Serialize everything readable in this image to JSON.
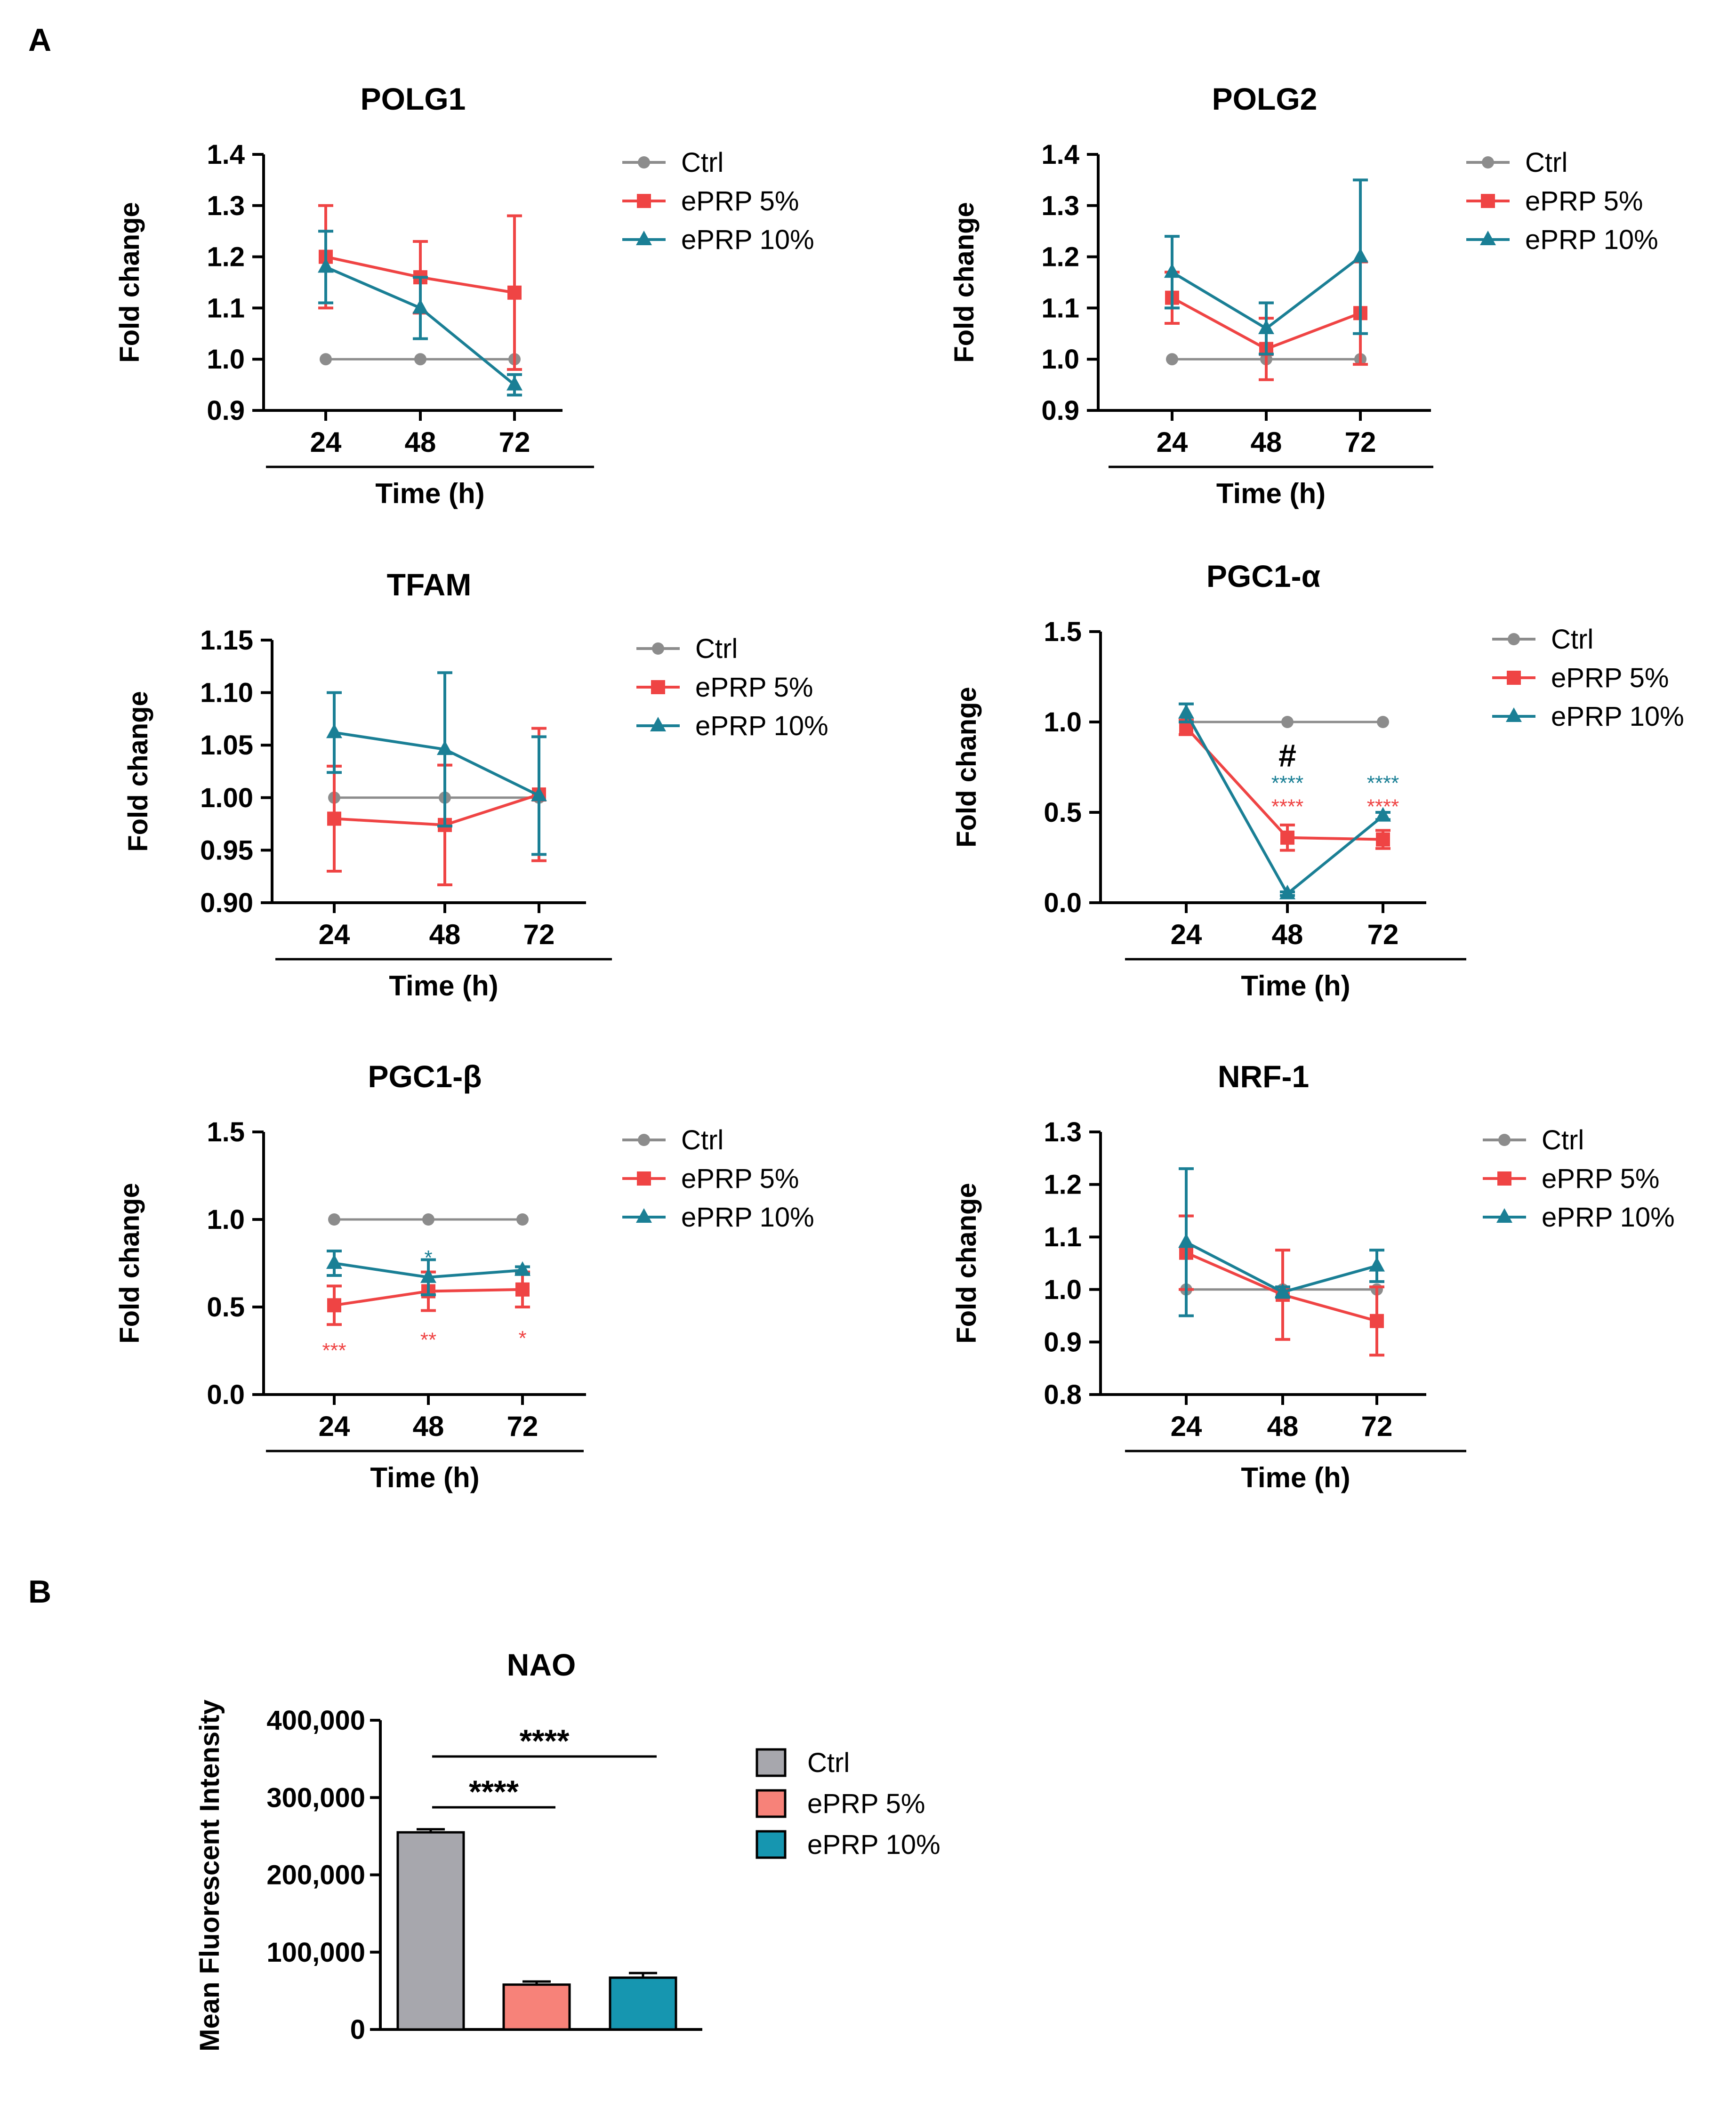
{
  "panels": {
    "a": "A",
    "b": "B"
  },
  "colors": {
    "ctrl": "#8c8c8c",
    "eprp5": "#ef4444",
    "eprp10": "#1a7f95",
    "bar_ctrl": "#a7a7ad",
    "bar_eprp5": "#f78279",
    "bar_eprp10": "#1696b0"
  },
  "chart_data": [
    {
      "id": "polg1",
      "type": "line",
      "title": "POLG1",
      "xlabel": "Time (h)",
      "ylabel": "Fold change",
      "categories": [
        "24",
        "48",
        "72"
      ],
      "ylim": [
        0.9,
        1.4
      ],
      "yticks": [
        "0.9",
        "1.0",
        "1.1",
        "1.2",
        "1.3",
        "1.4"
      ],
      "series": [
        {
          "name": "Ctrl",
          "values": [
            1.0,
            1.0,
            1.0
          ],
          "err": [
            0,
            0,
            0
          ]
        },
        {
          "name": "ePRP 5%",
          "values": [
            1.2,
            1.16,
            1.13
          ],
          "err": [
            0.1,
            0.07,
            0.15
          ]
        },
        {
          "name": "ePRP 10%",
          "values": [
            1.18,
            1.1,
            0.95
          ],
          "err": [
            0.07,
            0.06,
            0.02
          ]
        }
      ],
      "annotations": []
    },
    {
      "id": "polg2",
      "type": "line",
      "title": "POLG2",
      "xlabel": "Time (h)",
      "ylabel": "Fold change",
      "categories": [
        "24",
        "48",
        "72"
      ],
      "ylim": [
        0.9,
        1.4
      ],
      "yticks": [
        "0.9",
        "1.0",
        "1.1",
        "1.2",
        "1.3",
        "1.4"
      ],
      "series": [
        {
          "name": "Ctrl",
          "values": [
            1.0,
            1.0,
            1.0
          ],
          "err": [
            0,
            0,
            0
          ]
        },
        {
          "name": "ePRP 5%",
          "values": [
            1.12,
            1.02,
            1.09
          ],
          "err": [
            0.05,
            0.06,
            0.1
          ]
        },
        {
          "name": "ePRP 10%",
          "values": [
            1.17,
            1.06,
            1.2
          ],
          "err": [
            0.07,
            0.05,
            0.15
          ]
        }
      ],
      "annotations": []
    },
    {
      "id": "tfam",
      "type": "line",
      "title": "TFAM",
      "xlabel": "Time (h)",
      "ylabel": "Fold change",
      "categories": [
        "24",
        "48",
        "72"
      ],
      "ylim": [
        0.9,
        1.15
      ],
      "yticks": [
        "0.90",
        "0.95",
        "1.00",
        "1.05",
        "1.10",
        "1.15"
      ],
      "series": [
        {
          "name": "Ctrl",
          "values": [
            1.0,
            1.0,
            1.0
          ],
          "err": [
            0,
            0,
            0
          ]
        },
        {
          "name": "ePRP 5%",
          "values": [
            0.98,
            0.974,
            1.003
          ],
          "err": [
            0.05,
            0.057,
            0.063
          ]
        },
        {
          "name": "ePRP 10%",
          "values": [
            1.062,
            1.046,
            1.002
          ],
          "err": [
            0.038,
            0.073,
            0.056
          ]
        }
      ],
      "annotations": []
    },
    {
      "id": "pgc1a",
      "type": "line",
      "title": "PGC1-α",
      "xlabel": "Time (h)",
      "ylabel": "Fold change",
      "categories": [
        "24",
        "48",
        "72"
      ],
      "ylim": [
        0,
        1.5
      ],
      "yticks": [
        "0.0",
        "0.5",
        "1.0",
        "1.5"
      ],
      "series": [
        {
          "name": "Ctrl",
          "values": [
            1.0,
            1.0,
            1.0
          ],
          "err": [
            0,
            0,
            0
          ]
        },
        {
          "name": "ePRP 5%",
          "values": [
            0.97,
            0.36,
            0.35
          ],
          "err": [
            0.04,
            0.07,
            0.05
          ]
        },
        {
          "name": "ePRP 10%",
          "values": [
            1.05,
            0.05,
            0.48
          ],
          "err": [
            0.05,
            0.01,
            0.02
          ]
        }
      ],
      "annotations": [
        {
          "text": "#",
          "cat": 1,
          "y": 0.79,
          "series": "none"
        },
        {
          "text": "****",
          "cat": 1,
          "y": 0.66,
          "series": "ePRP 10%"
        },
        {
          "text": "****",
          "cat": 1,
          "y": 0.53,
          "series": "ePRP 5%"
        },
        {
          "text": "****",
          "cat": 2,
          "y": 0.66,
          "series": "ePRP 10%"
        },
        {
          "text": "****",
          "cat": 2,
          "y": 0.53,
          "series": "ePRP 5%"
        }
      ]
    },
    {
      "id": "pgc1b",
      "type": "line",
      "title": "PGC1-β",
      "xlabel": "Time (h)",
      "ylabel": "Fold change",
      "categories": [
        "24",
        "48",
        "72"
      ],
      "ylim": [
        0,
        1.5
      ],
      "yticks": [
        "0.0",
        "0.5",
        "1.0",
        "1.5"
      ],
      "series": [
        {
          "name": "Ctrl",
          "values": [
            1.0,
            1.0,
            1.0
          ],
          "err": [
            0,
            0,
            0
          ]
        },
        {
          "name": "ePRP 5%",
          "values": [
            0.51,
            0.59,
            0.6
          ],
          "err": [
            0.11,
            0.11,
            0.1
          ]
        },
        {
          "name": "ePRP 10%",
          "values": [
            0.75,
            0.67,
            0.71
          ],
          "err": [
            0.07,
            0.1,
            0.02
          ]
        }
      ],
      "annotations": [
        {
          "text": "*",
          "cat": 1,
          "y": 0.78,
          "series": "ePRP 10%"
        },
        {
          "text": "***",
          "cat": 0,
          "y": 0.25,
          "series": "ePRP 5%"
        },
        {
          "text": "**",
          "cat": 1,
          "y": 0.31,
          "series": "ePRP 5%"
        },
        {
          "text": "*",
          "cat": 2,
          "y": 0.32,
          "series": "ePRP 5%"
        }
      ]
    },
    {
      "id": "nrf1",
      "type": "line",
      "title": "NRF-1",
      "xlabel": "Time (h)",
      "ylabel": "Fold change",
      "categories": [
        "24",
        "48",
        "72"
      ],
      "ylim": [
        0.8,
        1.3
      ],
      "yticks": [
        "0.8",
        "0.9",
        "1.0",
        "1.1",
        "1.2",
        "1.3"
      ],
      "series": [
        {
          "name": "Ctrl",
          "values": [
            1.0,
            1.0,
            1.0
          ],
          "err": [
            0,
            0,
            0
          ]
        },
        {
          "name": "ePRP 5%",
          "values": [
            1.07,
            0.99,
            0.94
          ],
          "err": [
            0.07,
            0.085,
            0.065
          ]
        },
        {
          "name": "ePRP 10%",
          "values": [
            1.09,
            0.995,
            1.045
          ],
          "err": [
            0.14,
            0.01,
            0.03
          ]
        }
      ],
      "annotations": []
    },
    {
      "id": "nao",
      "type": "bar",
      "title": "NAO",
      "xlabel": "",
      "ylabel": "Mean Fluorescent Intensity",
      "categories": [
        "Ctrl",
        "ePRP 5%",
        "ePRP 10%"
      ],
      "values": [
        255000,
        58000,
        67000
      ],
      "err": [
        4000,
        4000,
        6000
      ],
      "ylim": [
        0,
        400000
      ],
      "yticks": [
        "0",
        "100,000",
        "200,000",
        "300,000",
        "400,000"
      ],
      "significance": [
        {
          "from": 0,
          "to": 2,
          "text": "****"
        },
        {
          "from": 0,
          "to": 1,
          "text": "****"
        }
      ]
    }
  ]
}
